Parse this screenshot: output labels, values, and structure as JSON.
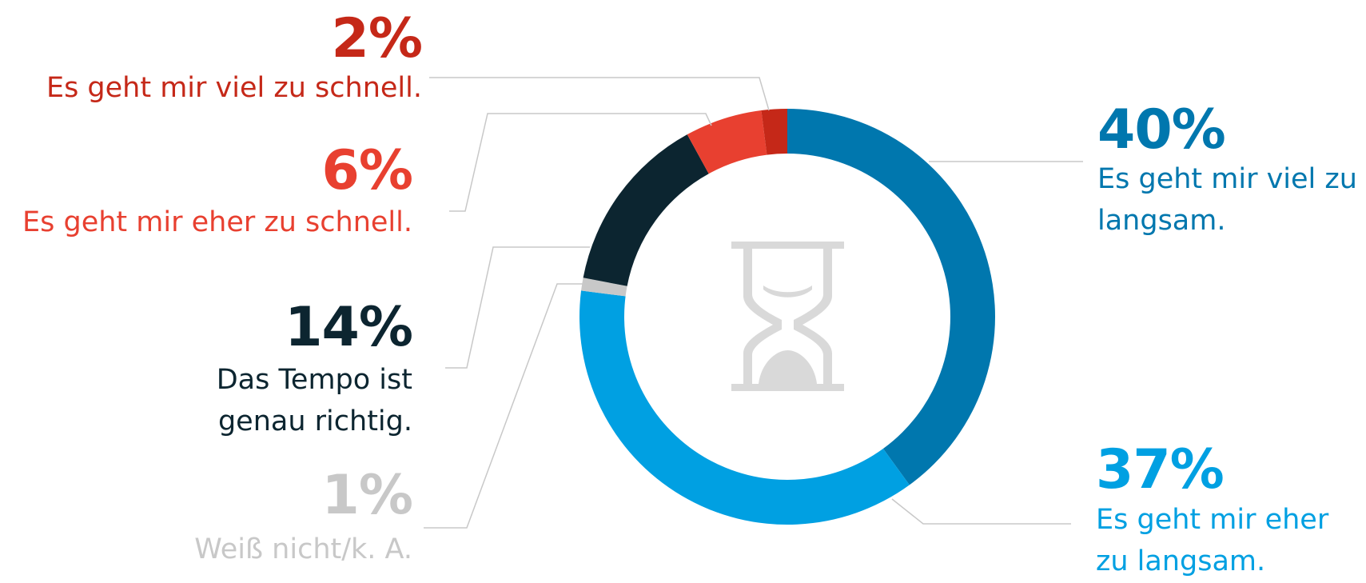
{
  "chart_data": {
    "type": "pie",
    "title": "",
    "series": [
      {
        "values": [
          40,
          37,
          1,
          14,
          6,
          2
        ]
      }
    ],
    "slices": [
      {
        "value": 40,
        "value_label": "40%",
        "label_lines": [
          "Es geht mir viel zu",
          "langsam."
        ],
        "color": "#0077ae"
      },
      {
        "value": 37,
        "value_label": "37%",
        "label_lines": [
          "Es geht mir eher",
          "zu langsam."
        ],
        "color": "#00a0e2"
      },
      {
        "value": 1,
        "value_label": "1%",
        "label_lines": [
          "Weiß nicht/k. A."
        ],
        "color": "#c8c8c8"
      },
      {
        "value": 14,
        "value_label": "14%",
        "label_lines": [
          "Das Tempo ist",
          "genau richtig."
        ],
        "color": "#0c2530"
      },
      {
        "value": 6,
        "value_label": "6%",
        "label_lines": [
          "Es geht mir eher zu schnell."
        ],
        "color": "#e84030"
      },
      {
        "value": 2,
        "value_label": "2%",
        "label_lines": [
          "Es geht mir viel zu schnell."
        ],
        "color": "#c52818"
      }
    ],
    "legend": "none",
    "center_icon": "hourglass-icon"
  }
}
